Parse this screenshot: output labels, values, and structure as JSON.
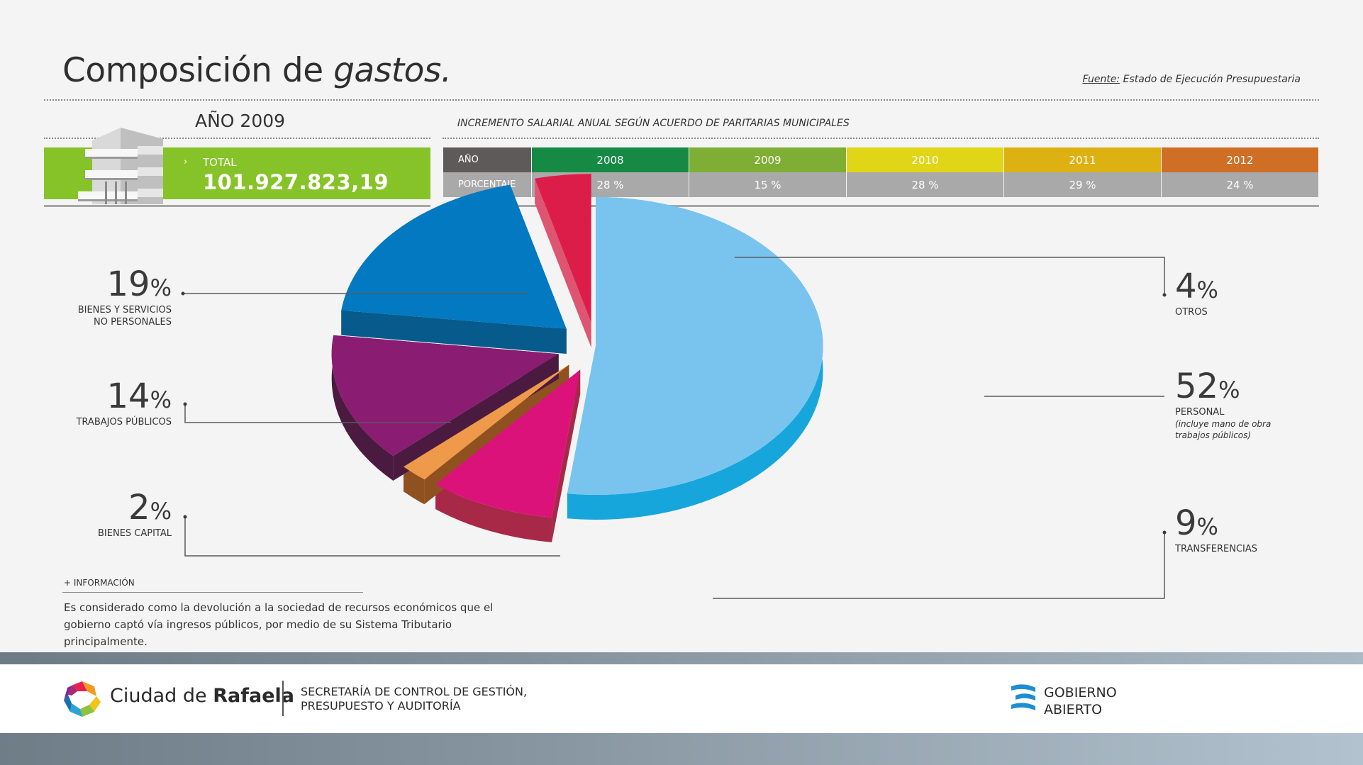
{
  "header": {
    "title_main": "Composición de ",
    "title_italic": "gastos.",
    "source_label": "Fuente:",
    "source_text": " Estado de Ejecución Presupuestaria"
  },
  "year_section": {
    "year_title": "AÑO 2009",
    "total_label": "TOTAL",
    "total_value": "101.927.823,19",
    "arrow": "›"
  },
  "increment_table": {
    "title": "INCREMENTO SALARIAL ANUAL SEGÚN ACUERDO DE PARITARIAS MUNICIPALES",
    "row1_header": "AÑO",
    "row2_header": "PORCENTAJE",
    "years": [
      "2008",
      "2009",
      "2010",
      "2011",
      "2012"
    ],
    "percentages": [
      "28 %",
      "15 %",
      "28 %",
      "29 %",
      "24 %"
    ],
    "year_colors": [
      "#168a45",
      "#7eae34",
      "#e0d617",
      "#ddb112",
      "#cf6f25"
    ]
  },
  "chart_data": {
    "type": "pie",
    "title": "",
    "series": [
      {
        "name": "PERSONAL",
        "value": 52,
        "value_label": "52",
        "note": "(incluye mano de obra trabajos públicos)",
        "color": "#79c4ef",
        "side_color": "#17a6dc"
      },
      {
        "name": "TRANSFERENCIAS",
        "value": 9,
        "value_label": "9",
        "color": "#dc127b",
        "side_color": "#a82848"
      },
      {
        "name": "BIENES CAPITAL",
        "value": 2,
        "value_label": "2",
        "color": "#ef9a4b",
        "side_color": "#8f5120"
      },
      {
        "name": "TRABAJOS PÚBLICOS",
        "value": 14,
        "value_label": "14",
        "color": "#8a1d72",
        "side_color": "#4b1a40"
      },
      {
        "name": "BIENES Y SERVICIOS NO PERSONALES",
        "value": 19,
        "value_label": "19",
        "color": "#0279c0",
        "side_color": "#075a8c"
      },
      {
        "name": "OTROS",
        "value": 4,
        "value_label": "4",
        "color": "#dc1d4a",
        "side_color": "#de5571"
      }
    ]
  },
  "labels": {
    "percent_sign": "%",
    "bienes_servicios_line1": "BIENES Y SERVICIOS",
    "bienes_servicios_line2": "NO PERSONALES",
    "personal_note_line1": "(incluye mano de obra",
    "personal_note_line2": "trabajos públicos)"
  },
  "info": {
    "label": "+ INFORMACIÓN",
    "text": "Es considerado como la devolución a la sociedad de recursos económicos que el gobierno captó vía ingresos públicos, por medio de su Sistema Tributario principalmente."
  },
  "footer": {
    "city_prefix": "Ciudad de ",
    "city_name": "Rafaela",
    "secretaria_line1": "SECRETARÍA DE CONTROL DE GESTIÓN,",
    "secretaria_line2": "PRESUPUESTO Y AUDITORÍA",
    "gobierno_line1": "GOBIERNO",
    "gobierno_line2": "ABIERTO"
  }
}
